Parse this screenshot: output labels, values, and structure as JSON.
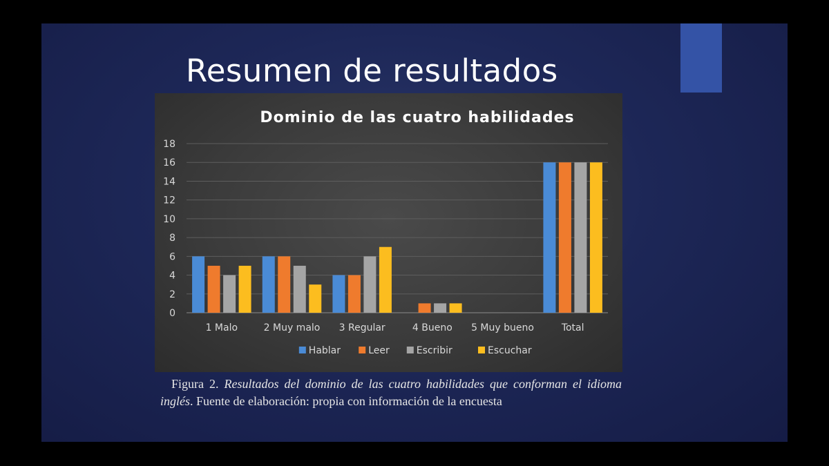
{
  "slide": {
    "title": "Resumen de resultados",
    "background_color": "#1d2757",
    "accent_color": "#3453a6"
  },
  "caption": {
    "label": "Figura 2.",
    "italic_text": "Resultados del dominio de las cuatro habilidades que conforman el idioma inglés",
    "plain_text": ". Fuente de elaboración: propia con información de la encuesta"
  },
  "chart_data": {
    "type": "bar",
    "title": "Dominio de las cuatro habilidades",
    "categories": [
      "1 Malo",
      "2 Muy malo",
      "3 Regular",
      "4 Bueno",
      "5 Muy bueno",
      "Total"
    ],
    "series": [
      {
        "name": "Hablar",
        "color": "#4a8bd6",
        "values": [
          6,
          6,
          4,
          0,
          0,
          16
        ]
      },
      {
        "name": "Leer",
        "color": "#ef7b2d",
        "values": [
          5,
          6,
          4,
          1,
          0,
          16
        ]
      },
      {
        "name": "Escribir",
        "color": "#a5a5a5",
        "values": [
          4,
          5,
          6,
          1,
          0,
          16
        ]
      },
      {
        "name": "Escuchar",
        "color": "#fcbd1f",
        "values": [
          5,
          3,
          7,
          1,
          0,
          16
        ]
      }
    ],
    "ylim": [
      0,
      18
    ],
    "yticks": [
      0,
      2,
      4,
      6,
      8,
      10,
      12,
      14,
      16,
      18
    ],
    "grid": true,
    "legend_position": "bottom"
  }
}
